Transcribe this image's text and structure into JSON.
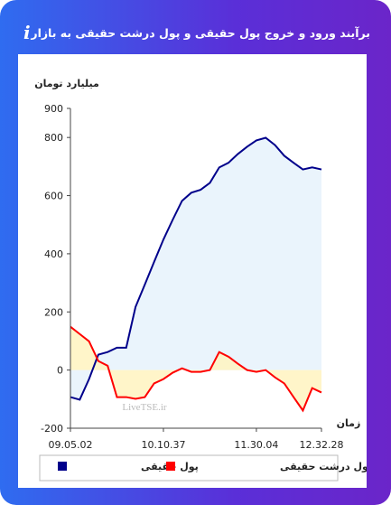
{
  "chart_data": {
    "type": "line",
    "title": "برآیند ورود و خروج پول حقیقی و پول درشت حقیقی به بازار",
    "y_label": "میلیارد تومان",
    "x_label": "زمان",
    "watermark": "LiveTSE.ir",
    "x": [
      0,
      1,
      2,
      3,
      4,
      5,
      6,
      7,
      8,
      9,
      10,
      11,
      12,
      13,
      14,
      15,
      16,
      17,
      18,
      19,
      20,
      21,
      22,
      23,
      24,
      25,
      26,
      27
    ],
    "xlim": [
      0,
      27
    ],
    "xticks": [
      {
        "value": 0,
        "label": "09.05.02"
      },
      {
        "value": 10,
        "label": "10.10.37"
      },
      {
        "value": 20,
        "label": "11.30.04"
      },
      {
        "value": 27,
        "label": "12.32.28"
      }
    ],
    "ylim": [
      -200,
      900
    ],
    "yticks": [
      -200,
      0,
      200,
      400,
      600,
      800,
      900
    ],
    "series": [
      {
        "name": "پول حقیقی",
        "color": "#00008b",
        "fill": "#e6f2fb",
        "values": [
          -93,
          -102,
          -31,
          53,
          62,
          77,
          77,
          217,
          294,
          372,
          449,
          517,
          582,
          610,
          620,
          644,
          697,
          713,
          743,
          768,
          790,
          799,
          774,
          737,
          713,
          690,
          697,
          690
        ]
      },
      {
        "name": "پول درشت حقیقی",
        "color": "#ff0000",
        "fill": "#fff3c0",
        "values": [
          149,
          124,
          99,
          31,
          15,
          -93,
          -93,
          -99,
          -93,
          -46,
          -31,
          -9,
          6,
          -6,
          -6,
          0,
          62,
          46,
          22,
          0,
          -6,
          0,
          -25,
          -46,
          -93,
          -139,
          -62,
          -77
        ]
      }
    ]
  }
}
